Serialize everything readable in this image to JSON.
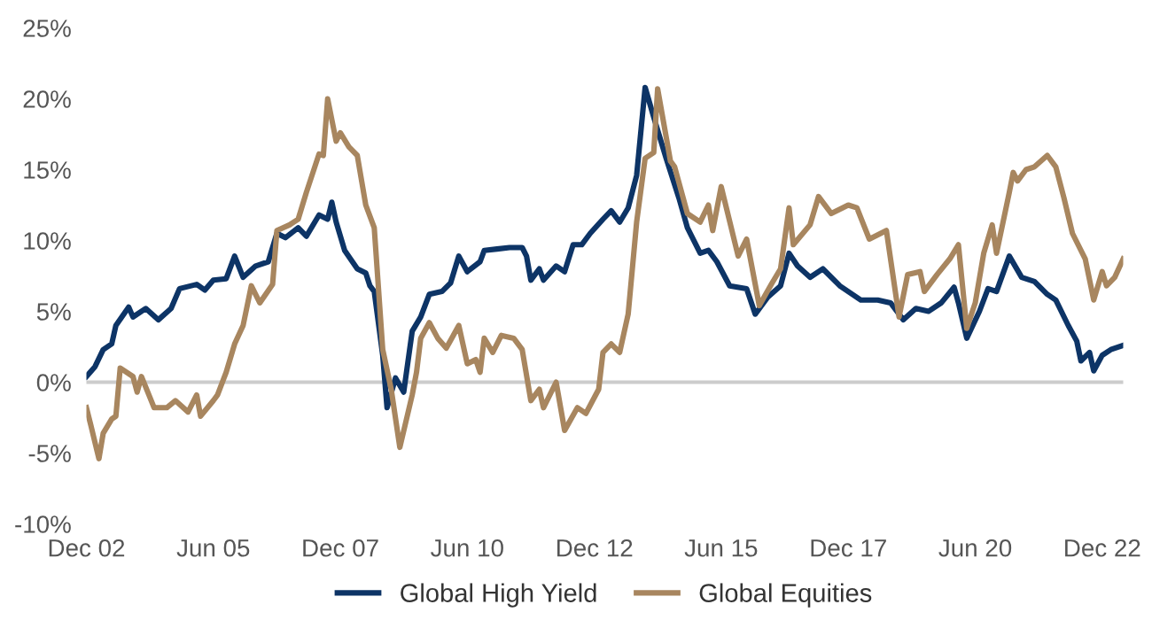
{
  "chart_data": {
    "type": "line",
    "xlim": [
      "2002-12",
      "2023-05"
    ],
    "xticks": [
      {
        "value": "2002-12",
        "label": "Dec 02"
      },
      {
        "value": "2005-06",
        "label": "Jun 05"
      },
      {
        "value": "2007-12",
        "label": "Dec 07"
      },
      {
        "value": "2010-06",
        "label": "Jun 10"
      },
      {
        "value": "2012-12",
        "label": "Dec 12"
      },
      {
        "value": "2015-06",
        "label": "Jun 15"
      },
      {
        "value": "2017-12",
        "label": "Dec 17"
      },
      {
        "value": "2020-06",
        "label": "Jun 20"
      },
      {
        "value": "2022-12",
        "label": "Dec 22"
      }
    ],
    "ylim": [
      -10,
      25
    ],
    "yticks": [
      {
        "value": -10,
        "label": "-10%"
      },
      {
        "value": -5,
        "label": "-5%"
      },
      {
        "value": 0,
        "label": "0%"
      },
      {
        "value": 5,
        "label": "5%"
      },
      {
        "value": 10,
        "label": "10%"
      },
      {
        "value": 15,
        "label": "15%"
      },
      {
        "value": 20,
        "label": "20%"
      },
      {
        "value": 25,
        "label": "25%"
      }
    ],
    "grid": false,
    "legend": "bottom",
    "marker": "none",
    "line_style": "solid",
    "ref_lines": [
      {
        "axis": "y",
        "value": 0,
        "color": "#cccccc"
      }
    ],
    "series": [
      {
        "name": "Global High Yield",
        "color": "#0d3466",
        "x": [
          "2002-12",
          "2003-02",
          "2003-04",
          "2003-06",
          "2003-07",
          "2003-10",
          "2003-11",
          "2004-02",
          "2004-05",
          "2004-08",
          "2004-10",
          "2005-02",
          "2005-04",
          "2005-06",
          "2005-09",
          "2005-11",
          "2006-01",
          "2006-04",
          "2006-07",
          "2006-09",
          "2006-11",
          "2007-02",
          "2007-04",
          "2007-07",
          "2007-09",
          "2007-10",
          "2007-11",
          "2008-01",
          "2008-04",
          "2008-06",
          "2008-07",
          "2008-08",
          "2008-10",
          "2008-11",
          "2009-01",
          "2009-03",
          "2009-05",
          "2009-07",
          "2009-09",
          "2009-12",
          "2010-02",
          "2010-04",
          "2010-06",
          "2010-09",
          "2010-10",
          "2011-01",
          "2011-04",
          "2011-07",
          "2011-08",
          "2011-09",
          "2011-11",
          "2011-12",
          "2012-03",
          "2012-05",
          "2012-07",
          "2012-09",
          "2012-11",
          "2013-02",
          "2013-04",
          "2013-06",
          "2013-08",
          "2013-10",
          "2013-12",
          "2014-02",
          "2014-05",
          "2014-08",
          "2014-10",
          "2015-01",
          "2015-03",
          "2015-05",
          "2015-08",
          "2015-12",
          "2016-02",
          "2016-05",
          "2016-08",
          "2016-10",
          "2016-12",
          "2017-03",
          "2017-06",
          "2017-10",
          "2018-03",
          "2018-07",
          "2018-10",
          "2019-01",
          "2019-04",
          "2019-07",
          "2019-10",
          "2020-01",
          "2020-02",
          "2020-04",
          "2020-07",
          "2020-09",
          "2020-11",
          "2021-02",
          "2021-05",
          "2021-08",
          "2021-11",
          "2022-01",
          "2022-04",
          "2022-06",
          "2022-07",
          "2022-09",
          "2022-10",
          "2022-12",
          "2023-02",
          "2023-05"
        ],
        "values": [
          0.4,
          1.1,
          2.3,
          2.7,
          4.0,
          5.3,
          4.6,
          5.2,
          4.4,
          5.2,
          6.6,
          6.9,
          6.5,
          7.2,
          7.3,
          8.9,
          7.4,
          8.2,
          8.5,
          10.5,
          10.2,
          10.9,
          10.3,
          11.8,
          11.5,
          12.7,
          11.3,
          9.3,
          8.0,
          7.7,
          6.8,
          6.4,
          1.9,
          -1.8,
          0.3,
          -0.7,
          3.6,
          4.6,
          6.2,
          6.4,
          7.0,
          8.9,
          7.8,
          8.5,
          9.3,
          9.4,
          9.5,
          9.5,
          8.9,
          7.2,
          8.0,
          7.2,
          8.2,
          7.8,
          9.7,
          9.7,
          10.5,
          11.5,
          12.1,
          11.3,
          12.3,
          14.6,
          20.8,
          18.7,
          15.8,
          13.0,
          10.9,
          9.1,
          9.3,
          8.5,
          6.8,
          6.6,
          4.8,
          6.0,
          6.8,
          9.1,
          8.2,
          7.4,
          8.0,
          6.8,
          5.8,
          5.8,
          5.6,
          4.4,
          5.2,
          5.0,
          5.6,
          6.7,
          5.6,
          3.1,
          5.0,
          6.6,
          6.4,
          8.9,
          7.4,
          7.1,
          6.2,
          5.8,
          4.0,
          2.9,
          1.5,
          2.1,
          0.8,
          1.9,
          2.3,
          2.6
        ]
      },
      {
        "name": "Global Equities",
        "color": "#a8865f",
        "x": [
          "2002-12",
          "2003-01",
          "2003-03",
          "2003-04",
          "2003-06",
          "2003-07",
          "2003-08",
          "2003-11",
          "2003-12",
          "2004-01",
          "2004-04",
          "2004-07",
          "2004-09",
          "2004-12",
          "2005-02",
          "2005-03",
          "2005-06",
          "2005-07",
          "2005-09",
          "2005-11",
          "2006-01",
          "2006-03",
          "2006-05",
          "2006-08",
          "2006-09",
          "2006-12",
          "2007-02",
          "2007-04",
          "2007-07",
          "2007-08",
          "2007-09",
          "2007-11",
          "2007-12",
          "2008-02",
          "2008-04",
          "2008-06",
          "2008-08",
          "2008-10",
          "2008-12",
          "2009-02",
          "2009-05",
          "2009-06",
          "2009-07",
          "2009-09",
          "2009-11",
          "2010-01",
          "2010-04",
          "2010-06",
          "2010-08",
          "2010-09",
          "2010-10",
          "2010-12",
          "2011-02",
          "2011-05",
          "2011-07",
          "2011-09",
          "2011-11",
          "2011-12",
          "2012-03",
          "2012-05",
          "2012-08",
          "2012-10",
          "2013-01",
          "2013-02",
          "2013-04",
          "2013-06",
          "2013-08",
          "2013-10",
          "2013-12",
          "2014-02",
          "2014-03",
          "2014-06",
          "2014-07",
          "2014-10",
          "2015-01",
          "2015-03",
          "2015-04",
          "2015-06",
          "2015-10",
          "2015-12",
          "2016-03",
          "2016-06",
          "2016-08",
          "2016-10",
          "2016-11",
          "2017-03",
          "2017-05",
          "2017-08",
          "2017-12",
          "2018-02",
          "2018-05",
          "2018-09",
          "2018-12",
          "2019-02",
          "2019-05",
          "2019-06",
          "2019-09",
          "2019-12",
          "2020-02",
          "2020-04",
          "2020-06",
          "2020-08",
          "2020-10",
          "2020-11",
          "2021-02",
          "2021-03",
          "2021-04",
          "2021-06",
          "2021-08",
          "2021-11",
          "2022-01",
          "2022-03",
          "2022-05",
          "2022-08",
          "2022-10",
          "2022-12",
          "2023-01",
          "2023-03",
          "2023-05"
        ],
        "values": [
          -1.8,
          -3.0,
          -5.4,
          -3.6,
          -2.6,
          -2.4,
          1.0,
          0.4,
          -0.7,
          0.4,
          -1.8,
          -1.8,
          -1.3,
          -2.1,
          -0.9,
          -2.4,
          -1.3,
          -0.9,
          0.7,
          2.7,
          4.0,
          6.8,
          5.6,
          6.9,
          10.7,
          11.1,
          11.5,
          13.4,
          16.1,
          16.0,
          20.0,
          17.0,
          17.6,
          16.6,
          16.0,
          12.5,
          10.9,
          2.3,
          -0.5,
          -4.6,
          -0.9,
          0.7,
          3.1,
          4.2,
          3.1,
          2.4,
          4.0,
          1.3,
          1.6,
          0.7,
          3.1,
          2.1,
          3.3,
          3.1,
          2.3,
          -1.3,
          -0.5,
          -1.8,
          0.0,
          -3.4,
          -1.8,
          -2.2,
          -0.5,
          2.1,
          2.7,
          2.1,
          4.8,
          11.3,
          15.8,
          16.2,
          20.7,
          15.6,
          15.2,
          11.9,
          11.3,
          12.5,
          10.7,
          13.8,
          8.9,
          10.1,
          5.4,
          7.0,
          8.0,
          12.3,
          9.7,
          11.1,
          13.1,
          11.9,
          12.5,
          12.3,
          10.1,
          10.7,
          4.6,
          7.6,
          7.8,
          6.4,
          7.6,
          8.7,
          9.7,
          3.8,
          5.6,
          9.1,
          11.1,
          9.1,
          13.4,
          14.8,
          14.2,
          15.0,
          15.2,
          16.0,
          15.2,
          13.0,
          10.5,
          8.7,
          5.8,
          7.8,
          6.8,
          7.4,
          8.7
        ]
      }
    ]
  }
}
